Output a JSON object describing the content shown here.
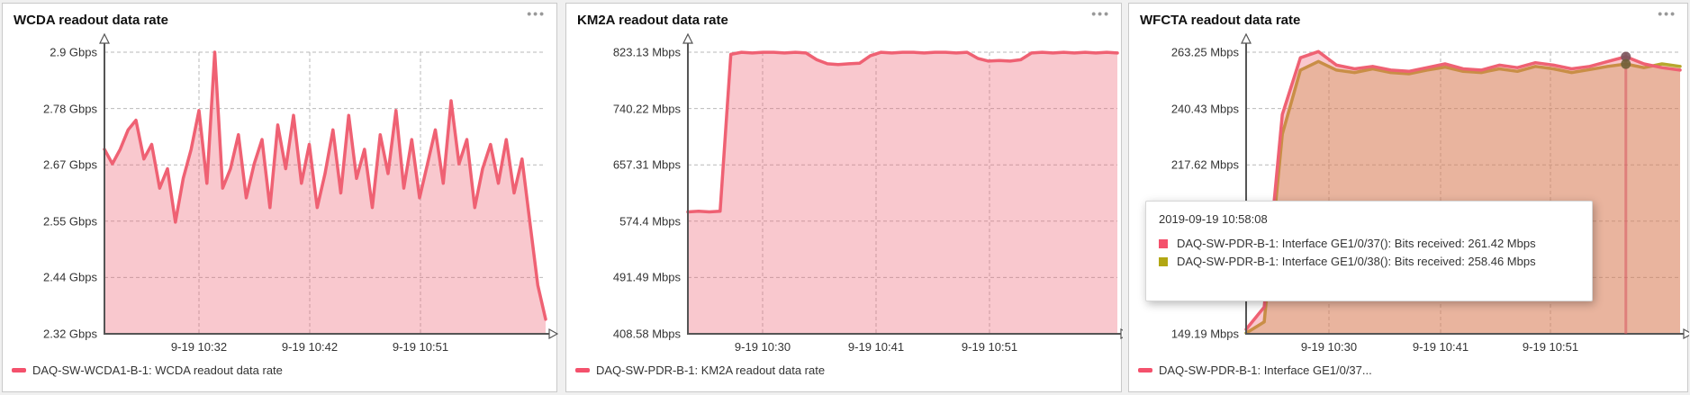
{
  "panels": [
    {
      "title": "WCDA readout data rate",
      "menu_icon": "more-options",
      "menu_glyph": "•••",
      "legend": {
        "label": "DAQ-SW-WCDA1-B-1: WCDA readout data rate",
        "color": "#f4516c"
      }
    },
    {
      "title": "KM2A readout data rate",
      "menu_icon": "more-options",
      "menu_glyph": "•••",
      "legend": {
        "label": "DAQ-SW-PDR-B-1: KM2A readout data rate",
        "color": "#f4516c"
      }
    },
    {
      "title": "WFCTA readout data rate",
      "menu_icon": "more-options",
      "menu_glyph": "•••",
      "legend": {
        "label": "DAQ-SW-PDR-B-1: Interface GE1/0/37...",
        "color": "#f4516c"
      }
    }
  ],
  "tooltip": {
    "timestamp": "2019-09-19 10:58:08",
    "rows": [
      {
        "color": "#f4516c",
        "text": "DAQ-SW-PDR-B-1: Interface GE1/0/37(): Bits received: 261.42 Mbps"
      },
      {
        "color": "#b2a713",
        "text": "DAQ-SW-PDR-B-1: Interface GE1/0/38(): Bits received: 258.46 Mbps"
      }
    ]
  },
  "chart_data": [
    {
      "type": "area",
      "title": "WCDA readout data rate",
      "unit": "Gbps",
      "ylim": [
        2.32,
        2.9
      ],
      "y_ticks": [
        2.9,
        2.78,
        2.67,
        2.55,
        2.44,
        2.32
      ],
      "y_tick_labels": [
        "2.9 Gbps",
        "2.78 Gbps",
        "2.67 Gbps",
        "2.55 Gbps",
        "2.44 Gbps",
        "2.32 Gbps"
      ],
      "x_tick_labels": [
        "9-19 10:32",
        "9-19 10:42",
        "9-19 10:51"
      ],
      "grid": true,
      "legend_position": "bottom-left",
      "series": [
        {
          "name": "DAQ-SW-WCDA1-B-1: WCDA readout data rate",
          "color": "#ef6173",
          "values": [
            2.7,
            2.67,
            2.7,
            2.74,
            2.76,
            2.68,
            2.71,
            2.62,
            2.66,
            2.55,
            2.64,
            2.7,
            2.78,
            2.63,
            2.9,
            2.62,
            2.66,
            2.73,
            2.6,
            2.67,
            2.72,
            2.58,
            2.75,
            2.66,
            2.77,
            2.63,
            2.71,
            2.58,
            2.65,
            2.74,
            2.61,
            2.77,
            2.64,
            2.7,
            2.58,
            2.73,
            2.65,
            2.78,
            2.62,
            2.72,
            2.6,
            2.67,
            2.74,
            2.63,
            2.8,
            2.67,
            2.72,
            2.58,
            2.66,
            2.71,
            2.63,
            2.72,
            2.61,
            2.68,
            2.55,
            2.42,
            2.35
          ]
        }
      ]
    },
    {
      "type": "area",
      "title": "KM2A readout data rate",
      "unit": "Mbps",
      "ylim": [
        408.58,
        823.13
      ],
      "y_ticks": [
        823.13,
        740.22,
        657.31,
        574.4,
        491.49,
        408.58
      ],
      "y_tick_labels": [
        "823.13 Mbps",
        "740.22 Mbps",
        "657.31 Mbps",
        "574.4 Mbps",
        "491.49 Mbps",
        "408.58 Mbps"
      ],
      "x_tick_labels": [
        "9-19 10:30",
        "9-19 10:41",
        "9-19 10:51"
      ],
      "grid": true,
      "legend_position": "bottom-left",
      "series": [
        {
          "name": "DAQ-SW-PDR-B-1: KM2A readout data rate",
          "color": "#ef6173",
          "values": [
            588,
            589,
            588,
            589,
            820,
            823,
            822,
            823,
            823,
            822,
            823,
            822,
            812,
            806,
            805,
            806,
            807,
            818,
            823,
            822,
            823,
            823,
            822,
            823,
            823,
            822,
            823,
            814,
            810,
            811,
            810,
            812,
            822,
            823,
            822,
            823,
            822,
            823,
            822,
            823,
            822
          ]
        }
      ]
    },
    {
      "type": "area",
      "title": "WFCTA readout data rate",
      "unit": "Mbps",
      "ylim": [
        149.19,
        263.25
      ],
      "y_ticks": [
        263.25,
        240.43,
        217.62,
        194.81,
        172.0,
        149.19
      ],
      "y_tick_labels": [
        "263.25 Mbps",
        "240.43 Mbps",
        "217.62 Mbps",
        "194.81 Mbps",
        "172 Mbps",
        "149.19 Mbps"
      ],
      "x_tick_labels": [
        "9-19 10:30",
        "9-19 10:41",
        "9-19 10:51"
      ],
      "grid": true,
      "legend_position": "bottom-left",
      "series": [
        {
          "name": "DAQ-SW-PDR-B-1: Interface GE1/0/37(): Bits received",
          "color": "#ef6173",
          "values": [
            151,
            160,
            238,
            261,
            263.5,
            258,
            256.5,
            257.5,
            256,
            255.5,
            257,
            258.5,
            256.5,
            256,
            258,
            257,
            259,
            258,
            256.5,
            257.5,
            259.5,
            261.42,
            258.5,
            257,
            256
          ]
        },
        {
          "name": "DAQ-SW-PDR-B-1: Interface GE1/0/38(): Bits received",
          "color": "#b6a72e",
          "values": [
            149.5,
            154,
            230,
            256,
            259.5,
            256,
            255,
            256.5,
            255,
            254.5,
            256,
            257.2,
            255.5,
            255,
            256.5,
            255.5,
            257.5,
            256.5,
            255,
            256.2,
            257.5,
            258.46,
            257,
            258.5,
            257.5
          ]
        }
      ],
      "crosshair": {
        "timestamp": "2019-09-19 10:58:08",
        "x_fraction": 0.875,
        "point_values": [
          261.42,
          258.46
        ],
        "point_colors": [
          "#7a575e",
          "#6f6138"
        ]
      }
    }
  ]
}
